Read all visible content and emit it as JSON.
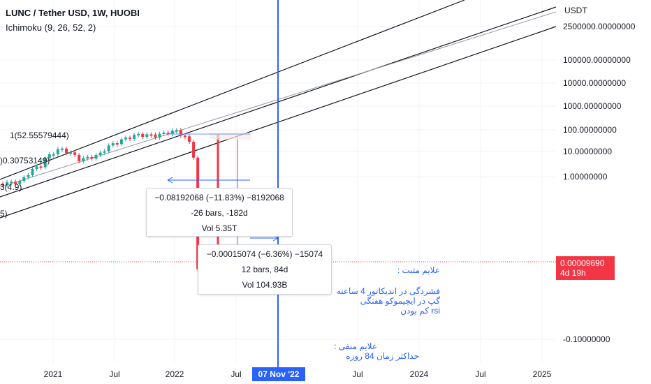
{
  "header": {
    "title": "LUNC / Tether USD, 1W, HUOBI",
    "indicator": "Ichimoku (9, 26, 52, 2)"
  },
  "price_axis": {
    "currency": "USDT",
    "ticks": [
      "2500000.00000000",
      "100000.00000000",
      "10000.00000000",
      "1000.00000000",
      "100.00000000",
      "10.00000000",
      "1.00000000",
      "-0.10000000"
    ],
    "current_price": "0.00009690",
    "countdown": "4d 19h"
  },
  "time_axis": {
    "ticks": [
      "2021",
      "Jul",
      "2022",
      "Jul",
      "Jul",
      "2024",
      "Jul",
      "2025"
    ],
    "crosshair_date": "07 Nov '22"
  },
  "fib_labels": [
    "1(52.55579444)",
    ")0.30753149)",
    "3(4.9)",
    "5)"
  ],
  "measure_boxes": [
    {
      "line1": "−0.08192068 (−11.83%) −8192068",
      "line2": "-26 bars, -182d",
      "line3": "Vol 5.35T"
    },
    {
      "line1": "−0.00015074 (−6.36%) −15074",
      "line2": "12 bars, 84d",
      "line3": "Vol 104.93B"
    }
  ],
  "notes": {
    "positive_title": "علایم مثبت :",
    "positive_lines": [
      "فشردگی در اندیکاتور 4 ساعته",
      "گپ در ایچیموکو هفتگی",
      "rsi کم بودن"
    ],
    "negative_title": "علایم منفی :",
    "negative_lines": [
      "حداکثر زمان 84 روزه"
    ]
  },
  "colors": {
    "up": "#26a69a",
    "down": "#f23645",
    "accent": "#2962ff",
    "channel": "#131722",
    "grid": "#f0f3fa"
  },
  "chart_data": {
    "type": "line",
    "title": "LUNC / Tether USD, 1W, HUOBI",
    "y_scale": "log",
    "series": [
      {
        "name": "LUNC / Tether USD",
        "x": [
          "2020-11",
          "2021-01",
          "2021-03",
          "2021-04",
          "2021-06",
          "2021-08",
          "2021-10",
          "2021-12",
          "2022-02",
          "2022-04",
          "2022-05",
          "2022-06",
          "2022-08",
          "2022-10"
        ],
        "values": [
          0.5,
          0.6,
          3,
          15,
          5,
          8,
          30,
          60,
          55,
          90,
          0.0001,
          0.0001,
          9e-05,
          9.69e-05
        ]
      }
    ]
  }
}
